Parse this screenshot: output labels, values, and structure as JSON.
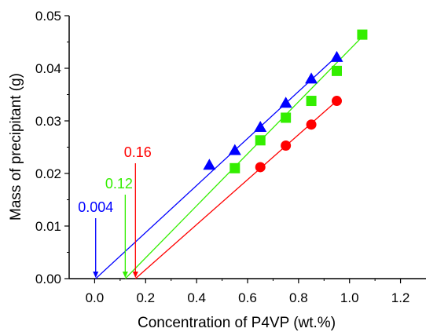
{
  "chart_data": {
    "type": "scatter",
    "title": "",
    "xlabel": "Concentration of P4VP (wt.%)",
    "ylabel": "Mass of precipitant (g)",
    "xlim": [
      -0.1,
      1.3
    ],
    "ylim": [
      0.0,
      0.05
    ],
    "grid": false,
    "legend": "none",
    "x_ticks": [
      0.0,
      0.2,
      0.4,
      0.6,
      0.8,
      1.0,
      1.2
    ],
    "x_tick_labels": [
      "0.0",
      "0.2",
      "0.4",
      "0.6",
      "0.8",
      "1.0",
      "1.2"
    ],
    "y_ticks": [
      0.0,
      0.01,
      0.02,
      0.03,
      0.04,
      0.05
    ],
    "y_tick_labels": [
      "0.00",
      "0.01",
      "0.02",
      "0.03",
      "0.04",
      "0.05"
    ],
    "series": [
      {
        "marker": "triangle",
        "color": "#0000ff",
        "x": [
          0.45,
          0.55,
          0.65,
          0.75,
          0.85,
          0.95
        ],
        "y": [
          0.0216,
          0.0244,
          0.0288,
          0.0334,
          0.038,
          0.0421
        ],
        "fit": {
          "x": [
            0.004,
            0.95
          ],
          "y": [
            0.0,
            0.0423
          ]
        },
        "marker_x": 0.004
      },
      {
        "marker": "square",
        "color": "#33ee00",
        "x": [
          0.55,
          0.65,
          0.75,
          0.85,
          0.95,
          1.05
        ],
        "y": [
          0.021,
          0.0263,
          0.0306,
          0.0338,
          0.0395,
          0.0464
        ],
        "fit": {
          "x": [
            0.12,
            1.05
          ],
          "y": [
            0.0,
            0.046
          ]
        },
        "marker_x": 0.12
      },
      {
        "marker": "circle",
        "color": "#ff0000",
        "x": [
          0.65,
          0.75,
          0.85,
          0.95
        ],
        "y": [
          0.0212,
          0.0253,
          0.0293,
          0.0338
        ],
        "fit": {
          "x": [
            0.16,
            0.95
          ],
          "y": [
            0.0,
            0.0338
          ]
        },
        "marker_x": 0.16
      }
    ],
    "annotations": [
      {
        "text": "0.004",
        "color": "#0000ff",
        "x": 0.004
      },
      {
        "text": "0.12",
        "color": "#33ee00",
        "x": 0.12
      },
      {
        "text": "0.16",
        "color": "#ff0000",
        "x": 0.16
      }
    ]
  }
}
